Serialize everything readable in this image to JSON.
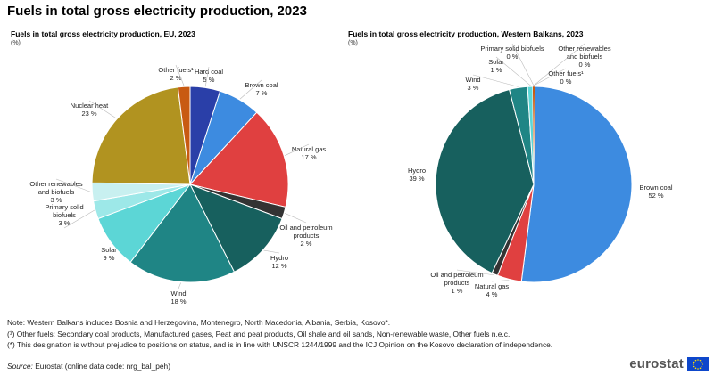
{
  "page": {
    "title": "Fuels in total gross electricity production, 2023"
  },
  "chart_data": [
    {
      "type": "pie",
      "title": "Fuels in total gross electricity production, EU, 2023",
      "unit": "(%)",
      "start": "12 o'clock, clockwise",
      "slices": [
        {
          "name": "Hard coal",
          "value": 5,
          "display": "5 %",
          "color": "#2a3fa8"
        },
        {
          "name": "Brown coal",
          "value": 7,
          "display": "7 %",
          "color": "#3d8be0"
        },
        {
          "name": "Natural gas",
          "value": 17,
          "display": "17 %",
          "color": "#e04040"
        },
        {
          "name": "Oil and petroleum products",
          "value": 2,
          "display": "2 %",
          "color": "#333333"
        },
        {
          "name": "Hydro",
          "value": 12,
          "display": "12 %",
          "color": "#17605e"
        },
        {
          "name": "Wind",
          "value": 18,
          "display": "18 %",
          "color": "#1f8585"
        },
        {
          "name": "Solar",
          "value": 9,
          "display": "9 %",
          "color": "#5cd6d6"
        },
        {
          "name": "Primary solid biofuels",
          "value": 3,
          "display": "3 %",
          "color": "#9de8e8"
        },
        {
          "name": "Other renewables and biofuels",
          "value": 3,
          "display": "3 %",
          "color": "#c8f0f0"
        },
        {
          "name": "Nuclear heat",
          "value": 23,
          "display": "23 %",
          "color": "#b19320"
        },
        {
          "name": "Other fuels¹",
          "value": 2,
          "display": "2 %",
          "color": "#c85a12"
        }
      ]
    },
    {
      "type": "pie",
      "title": "Fuels in total gross electricity production, Western Balkans, 2023",
      "unit": "(%)",
      "start": "12 o'clock, clockwise",
      "slices": [
        {
          "name": "Brown coal",
          "value": 52,
          "display": "52 %",
          "color": "#3d8be0"
        },
        {
          "name": "Natural gas",
          "value": 4,
          "display": "4 %",
          "color": "#e04040"
        },
        {
          "name": "Oil and petroleum products",
          "value": 1,
          "display": "1 %",
          "color": "#333333"
        },
        {
          "name": "Hydro",
          "value": 39,
          "display": "39 %",
          "color": "#17605e"
        },
        {
          "name": "Wind",
          "value": 3,
          "display": "3 %",
          "color": "#1f8585"
        },
        {
          "name": "Solar",
          "value": 1,
          "display": "1 %",
          "color": "#5cd6d6"
        },
        {
          "name": "Primary solid biofuels",
          "value": 0,
          "display": "0 %",
          "color": "#9de8e8"
        },
        {
          "name": "Other renewables and biofuels",
          "value": 0,
          "display": "0 %",
          "color": "#c8f0f0"
        },
        {
          "name": "Other fuels¹",
          "value": 0,
          "display": "0 %",
          "color": "#c85a12"
        }
      ]
    }
  ],
  "notes": {
    "note1": "Note: Western Balkans includes Bosnia and Herzegovina, Montenegro, North Macedonia, Albania, Serbia, Kosovo*.",
    "note2": "(¹) Other fuels: Secondary coal products, Manufactured gases, Peat and peat products, Oil shale and oil sands, Non-renewable waste, Other fuels n.e.c.",
    "note3": "(*) This designation is without prejudice to positions on status, and is in line with UNSCR 1244/1999 and the ICJ Opinion on the Kosovo declaration of independence.",
    "source_label": "Source:",
    "source_text": " Eurostat (online data code: nrg_bal_peh)"
  },
  "logo": {
    "text": "eurostat",
    "flag_color": "#0e47cb",
    "star_color": "#ffdd00"
  }
}
